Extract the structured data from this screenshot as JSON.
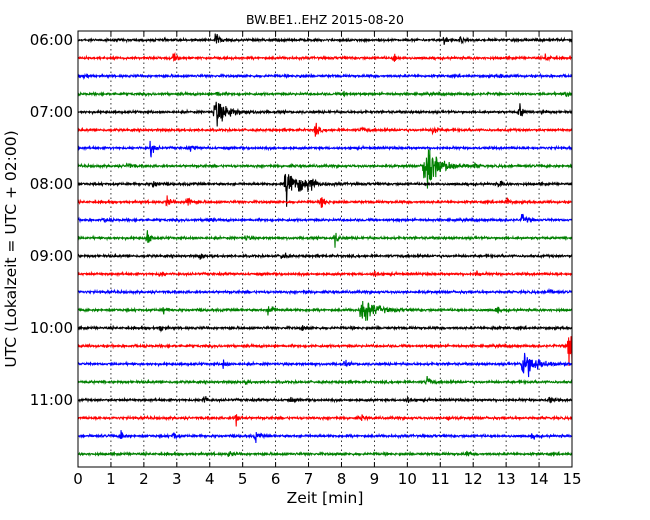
{
  "chart_data": {
    "type": "line",
    "title": "BW.BE1..EHZ 2015-08-20",
    "xlabel": "Zeit  [min]",
    "ylabel": "UTC (Lokalzeit = UTC + 02:00)",
    "xlim": [
      0,
      15
    ],
    "x_ticks": [
      "0",
      "1",
      "2",
      "3",
      "4",
      "5",
      "6",
      "7",
      "8",
      "9",
      "10",
      "11",
      "12",
      "13",
      "14",
      "15"
    ],
    "y_ticks": [
      "06:00",
      "07:00",
      "08:00",
      "09:00",
      "10:00",
      "11:00"
    ],
    "grid": "vertical dotted",
    "trace_interval_minutes": 15,
    "colors": {
      "black": "#000000",
      "red": "#ff0000",
      "blue": "#0000ff",
      "green": "#008000"
    },
    "series": [
      {
        "start": "06:00",
        "color": "black",
        "events": [
          [
            4.2,
            0.5
          ],
          [
            11.1,
            0.3
          ],
          [
            11.6,
            0.2
          ]
        ]
      },
      {
        "start": "06:15",
        "color": "red",
        "events": [
          [
            2.9,
            0.4
          ],
          [
            9.6,
            0.3
          ],
          [
            14.2,
            0.4
          ]
        ]
      },
      {
        "start": "06:30",
        "color": "blue",
        "events": [
          [
            0.2,
            0.2
          ],
          [
            6.7,
            0.15
          ],
          [
            12.8,
            0.15
          ]
        ]
      },
      {
        "start": "06:45",
        "color": "green",
        "events": [
          [
            4.2,
            0.2
          ],
          [
            8.1,
            0.2
          ],
          [
            14.8,
            0.2
          ]
        ]
      },
      {
        "start": "07:00",
        "color": "black",
        "events": [
          [
            4.15,
            0.9
          ],
          [
            13.4,
            0.5
          ],
          [
            14.1,
            0.2
          ]
        ]
      },
      {
        "start": "07:15",
        "color": "red",
        "events": [
          [
            7.2,
            0.5
          ],
          [
            8.6,
            0.2
          ],
          [
            10.8,
            0.4
          ]
        ]
      },
      {
        "start": "07:30",
        "color": "blue",
        "events": [
          [
            2.2,
            0.6
          ],
          [
            3.4,
            0.2
          ]
        ]
      },
      {
        "start": "07:45",
        "color": "green",
        "events": [
          [
            1.5,
            0.2
          ],
          [
            10.5,
            1.6
          ],
          [
            12.0,
            0.2
          ]
        ]
      },
      {
        "start": "08:00",
        "color": "black",
        "events": [
          [
            2.3,
            0.3
          ],
          [
            6.3,
            1.2
          ],
          [
            7.0,
            0.6
          ],
          [
            12.8,
            0.3
          ]
        ]
      },
      {
        "start": "08:15",
        "color": "red",
        "events": [
          [
            2.7,
            0.4
          ],
          [
            3.3,
            0.6
          ],
          [
            7.4,
            0.4
          ],
          [
            13.0,
            0.3
          ]
        ]
      },
      {
        "start": "08:30",
        "color": "blue",
        "events": [
          [
            0.8,
            0.2
          ],
          [
            3.9,
            0.2
          ],
          [
            13.5,
            0.4
          ]
        ]
      },
      {
        "start": "08:45",
        "color": "green",
        "events": [
          [
            2.1,
            0.5
          ],
          [
            5.1,
            0.2
          ],
          [
            7.8,
            0.5
          ]
        ]
      },
      {
        "start": "09:00",
        "color": "black",
        "events": [
          [
            3.7,
            0.2
          ],
          [
            6.2,
            0.3
          ]
        ]
      },
      {
        "start": "09:15",
        "color": "red",
        "events": [
          [
            2.5,
            0.2
          ],
          [
            9.0,
            0.2
          ],
          [
            12.1,
            0.2
          ]
        ]
      },
      {
        "start": "09:30",
        "color": "blue",
        "events": [
          [
            6.9,
            0.15
          ],
          [
            14.3,
            0.2
          ]
        ]
      },
      {
        "start": "09:45",
        "color": "green",
        "events": [
          [
            2.6,
            0.3
          ],
          [
            5.8,
            0.6
          ],
          [
            8.6,
            0.8
          ],
          [
            12.7,
            0.3
          ]
        ]
      },
      {
        "start": "10:00",
        "color": "black",
        "events": [
          [
            2.5,
            0.2
          ],
          [
            6.8,
            0.2
          ],
          [
            12.6,
            0.2
          ]
        ]
      },
      {
        "start": "10:15",
        "color": "red",
        "events": [
          [
            14.9,
            1.2
          ]
        ]
      },
      {
        "start": "10:30",
        "color": "blue",
        "events": [
          [
            4.4,
            0.3
          ],
          [
            8.1,
            0.2
          ],
          [
            13.5,
            1.0
          ]
        ]
      },
      {
        "start": "10:45",
        "color": "green",
        "events": [
          [
            5.1,
            0.2
          ],
          [
            10.6,
            0.4
          ]
        ]
      },
      {
        "start": "11:00",
        "color": "black",
        "events": [
          [
            3.8,
            0.4
          ],
          [
            6.4,
            0.2
          ],
          [
            10.0,
            0.2
          ],
          [
            14.3,
            0.2
          ]
        ]
      },
      {
        "start": "11:15",
        "color": "red",
        "events": [
          [
            4.8,
            0.4
          ],
          [
            8.6,
            0.2
          ],
          [
            11.2,
            0.2
          ]
        ]
      },
      {
        "start": "11:30",
        "color": "blue",
        "events": [
          [
            1.3,
            0.4
          ],
          [
            2.9,
            0.3
          ],
          [
            5.4,
            0.4
          ],
          [
            13.8,
            0.2
          ]
        ]
      },
      {
        "start": "11:45",
        "color": "green",
        "events": [
          [
            4.6,
            0.2
          ],
          [
            11.8,
            0.2
          ]
        ]
      }
    ]
  }
}
